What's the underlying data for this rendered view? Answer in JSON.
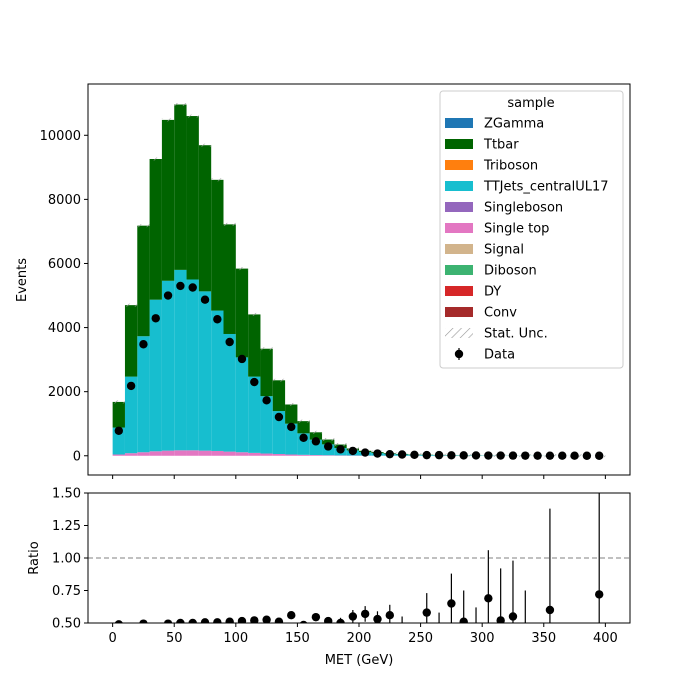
{
  "chart_data": [
    {
      "type": "bar",
      "stacked": true,
      "xlabel": "",
      "ylabel": "Events",
      "xlim": [
        -20,
        420
      ],
      "ylim": [
        -600,
        11600
      ],
      "bin_width": 10,
      "x_ticks": [
        0,
        50,
        100,
        150,
        200,
        250,
        300,
        350,
        400
      ],
      "y_ticks": [
        0,
        2000,
        4000,
        6000,
        8000,
        10000
      ],
      "legend": {
        "title": "sample",
        "placement": "top-right",
        "entries": [
          {
            "label": "ZGamma",
            "color": "#1f77b4",
            "kind": "patch"
          },
          {
            "label": "Ttbar",
            "color": "#006400",
            "kind": "patch"
          },
          {
            "label": "Triboson",
            "color": "#ff7f0e",
            "kind": "patch"
          },
          {
            "label": "TTJets_centralUL17",
            "color": "#17becf",
            "kind": "patch"
          },
          {
            "label": "Singleboson",
            "color": "#9467bd",
            "kind": "patch"
          },
          {
            "label": "Single top",
            "color": "#e377c2",
            "kind": "patch"
          },
          {
            "label": "Signal",
            "color": "#d2b48c",
            "kind": "patch"
          },
          {
            "label": "Diboson",
            "color": "#3cb371",
            "kind": "patch"
          },
          {
            "label": "DY",
            "color": "#d62728",
            "kind": "patch"
          },
          {
            "label": "Conv",
            "color": "#a52a2a",
            "kind": "patch"
          },
          {
            "label": "Stat. Unc.",
            "color": "#aaaaaa",
            "kind": "hatch"
          },
          {
            "label": "Data",
            "color": "#000000",
            "kind": "errorbar"
          }
        ]
      },
      "bin_centers": [
        5,
        15,
        25,
        35,
        45,
        55,
        65,
        75,
        85,
        95,
        105,
        115,
        125,
        135,
        145,
        155,
        165,
        175,
        185,
        195,
        205,
        215,
        225,
        235,
        245,
        255,
        265,
        275,
        285,
        295,
        305,
        315,
        325,
        335,
        345,
        355,
        365,
        375,
        385,
        395
      ],
      "series": [
        {
          "name": "Single top",
          "color": "#e377c2",
          "values": [
            40,
            80,
            110,
            140,
            160,
            170,
            170,
            160,
            150,
            130,
            110,
            90,
            70,
            55,
            40,
            30,
            22,
            16,
            11,
            8,
            6,
            4,
            3,
            2,
            2,
            1,
            1,
            1,
            1,
            0,
            0,
            0,
            0,
            0,
            0,
            0,
            0,
            0,
            0,
            0
          ]
        },
        {
          "name": "TTJets_centralUL17",
          "color": "#17becf",
          "values": [
            840,
            2390,
            3620,
            4730,
            5300,
            5630,
            5330,
            4970,
            4380,
            3670,
            2960,
            2380,
            1790,
            1340,
            960,
            670,
            480,
            340,
            230,
            160,
            110,
            80,
            60,
            40,
            30,
            25,
            20,
            15,
            12,
            10,
            8,
            6,
            5,
            4,
            3,
            3,
            2,
            2,
            1,
            1
          ]
        },
        {
          "name": "Ttbar",
          "color": "#006400",
          "values": [
            800,
            2230,
            3450,
            4390,
            5020,
            5160,
            5100,
            4560,
            4080,
            3420,
            2770,
            1940,
            1480,
            960,
            600,
            380,
            230,
            150,
            110,
            60,
            40,
            30,
            20,
            15,
            10,
            8,
            6,
            5,
            4,
            3,
            2,
            2,
            1,
            1,
            1,
            1,
            0,
            0,
            0,
            0
          ]
        }
      ],
      "data_points": [
        780,
        2180,
        3480,
        4290,
        5000,
        5300,
        5250,
        4870,
        4260,
        3550,
        3020,
        2300,
        1730,
        1210,
        900,
        560,
        450,
        290,
        200,
        150,
        100,
        70,
        50,
        40,
        30,
        20,
        20,
        15,
        12,
        10,
        8,
        6,
        5,
        4,
        3,
        3,
        2,
        2,
        1,
        1
      ]
    },
    {
      "type": "scatter",
      "xlabel": "MET (GeV)",
      "ylabel": "Ratio",
      "xlim": [
        -20,
        420
      ],
      "ylim": [
        0.5,
        1.5
      ],
      "x_ticks": [
        0,
        50,
        100,
        150,
        200,
        250,
        300,
        350,
        400
      ],
      "y_ticks": [
        0.5,
        0.75,
        1.0,
        1.25,
        1.5
      ],
      "y_tick_labels": [
        "0.50",
        "0.75",
        "1.00",
        "1.25",
        "1.50"
      ],
      "reference_line": 1.0,
      "points": [
        {
          "x": 5,
          "y": 0.49,
          "err": 0.02
        },
        {
          "x": 25,
          "y": 0.495,
          "err": 0.01
        },
        {
          "x": 45,
          "y": 0.495,
          "err": 0.01
        },
        {
          "x": 55,
          "y": 0.5,
          "err": 0.01
        },
        {
          "x": 65,
          "y": 0.5,
          "err": 0.01
        },
        {
          "x": 75,
          "y": 0.505,
          "err": 0.01
        },
        {
          "x": 85,
          "y": 0.505,
          "err": 0.01
        },
        {
          "x": 95,
          "y": 0.51,
          "err": 0.01
        },
        {
          "x": 105,
          "y": 0.515,
          "err": 0.012
        },
        {
          "x": 115,
          "y": 0.52,
          "err": 0.014
        },
        {
          "x": 125,
          "y": 0.525,
          "err": 0.016
        },
        {
          "x": 135,
          "y": 0.51,
          "err": 0.018
        },
        {
          "x": 145,
          "y": 0.56,
          "err": 0.02
        },
        {
          "x": 155,
          "y": 0.485,
          "err": 0.03
        },
        {
          "x": 165,
          "y": 0.545,
          "err": 0.03
        },
        {
          "x": 175,
          "y": 0.515,
          "err": 0.03
        },
        {
          "x": 185,
          "y": 0.5,
          "err": 0.04
        },
        {
          "x": 195,
          "y": 0.55,
          "err": 0.05
        },
        {
          "x": 205,
          "y": 0.57,
          "err": 0.06
        },
        {
          "x": 215,
          "y": 0.53,
          "err": 0.06
        },
        {
          "x": 225,
          "y": 0.56,
          "err": 0.08
        },
        {
          "x": 235,
          "y": 0.47,
          "err": 0.08
        },
        {
          "x": 255,
          "y": 0.58,
          "err": 0.15
        },
        {
          "x": 265,
          "y": 0.45,
          "err": 0.13
        },
        {
          "x": 275,
          "y": 0.65,
          "err": 0.23
        },
        {
          "x": 285,
          "y": 0.51,
          "err": 0.24
        },
        {
          "x": 295,
          "y": 0.45,
          "err": 0.17
        },
        {
          "x": 305,
          "y": 0.69,
          "err": 0.37
        },
        {
          "x": 315,
          "y": 0.52,
          "err": 0.4
        },
        {
          "x": 325,
          "y": 0.55,
          "err": 0.43
        },
        {
          "x": 335,
          "y": 0.45,
          "err": 0.3
        },
        {
          "x": 355,
          "y": 0.6,
          "err": 0.78
        },
        {
          "x": 395,
          "y": 0.72,
          "err": 0.8
        }
      ]
    }
  ]
}
